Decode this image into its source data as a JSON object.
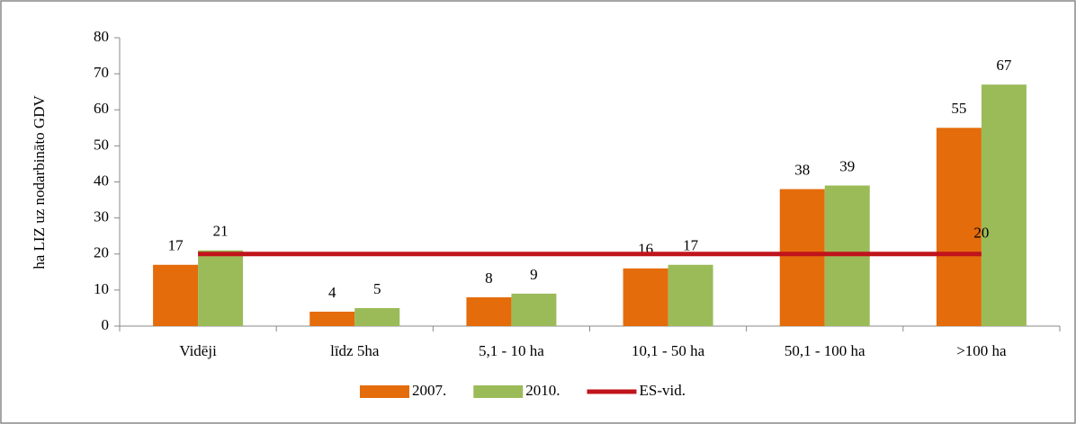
{
  "chart_data": {
    "type": "bar",
    "y_label": "ha LIZ uz nodarbināto GDV",
    "categories": [
      "Vidēji",
      "līdz 5ha",
      "5,1 - 10 ha",
      "10,1 - 50 ha",
      "50,1 - 100 ha",
      ">100 ha"
    ],
    "series": [
      {
        "name": "2007.",
        "color": "#e46c0a",
        "values": [
          17,
          4,
          8,
          16,
          38,
          55
        ]
      },
      {
        "name": "2010.",
        "color": "#9bbb59",
        "values": [
          21,
          5,
          9,
          17,
          39,
          67
        ]
      },
      {
        "name": "ES-vid.",
        "type": "line",
        "color": "#c0141c",
        "values": [
          20,
          20,
          20,
          20,
          20,
          20
        ]
      }
    ],
    "ylim": [
      0,
      80
    ],
    "yticks": [
      0,
      10,
      20,
      30,
      40,
      50,
      60,
      70,
      80
    ],
    "legend": "bottom"
  }
}
